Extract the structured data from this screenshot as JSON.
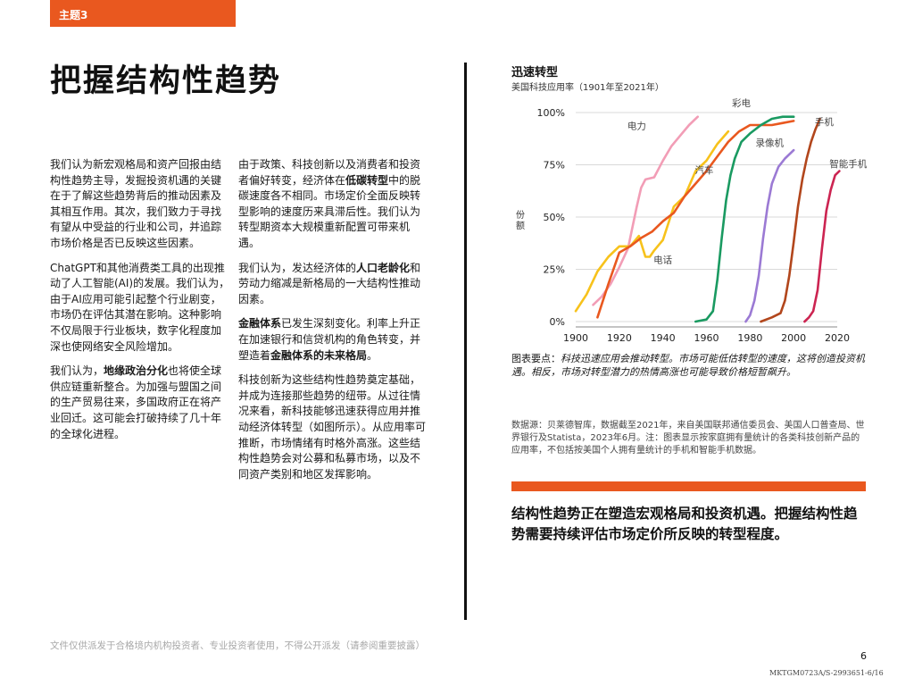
{
  "tag": "主题3",
  "title": "把握结构性趋势",
  "column1": {
    "p1": "我们认为新宏观格局和资产回报由结构性趋势主导，发掘投资机遇的关键在于了解这些趋势背后的推动因素及其相互作用。其次，我们致力于寻找有望从中受益的行业和公司，并追踪市场价格是否已反映这些因素。",
    "p2": "ChatGPT和其他消费类工具的出现推动了人工智能(AI)的发展。我们认为，由于AI应用可能引起整个行业剧变，市场仍在评估其潜在影响。这种影响不仅局限于行业板块，数字化程度加深也使网络安全风险增加。",
    "p3_bold": "地缘政治分化",
    "p3_before": "我们认为，",
    "p3_after": "也将使全球供应链重新整合。为加强与盟国之间的生产贸易往来，多国政府正在将产业回迁。这可能会打破持续了几十年的全球化进程。"
  },
  "column2": {
    "p1_before": "由于政策、科技创新以及消费者和投资者偏好转变，经济体在",
    "p1_bold": "低碳转型",
    "p1_after": "中的脱碳速度各不相同。市场定价全面反映转型影响的速度历来具滞后性。我们认为转型期资本大规模重新配置可带来机遇。",
    "p2_before": "我们认为，发达经济体的",
    "p2_bold": "人口老龄化",
    "p2_after": "和劳动力缩减是新格局的一大结构性推动因素。",
    "p3_bold1": "金融体系",
    "p3_mid": "已发生深刻变化。利率上升正在加速银行和信贷机构的角色转变，并塑造着",
    "p3_bold2": "金融体系的未来格局",
    "p3_end": "。",
    "p4": "科技创新为这些结构性趋势奠定基础，并成为连接那些趋势的纽带。从过往情况来看，新科技能够迅速获得应用并推动经济体转型（如图所示）。从应用率可推断，市场情绪有时格外高涨。这些结构性趋势会对公募和私募市场，以及不同资产类别和地区发挥影响。"
  },
  "chart_data": {
    "type": "line",
    "title": "迅速转型",
    "subtitle": "美国科技应用率（1901年至2021年）",
    "ylabel": "份额",
    "xlim": [
      1900,
      2020
    ],
    "ylim": [
      0,
      100
    ],
    "xticks": [
      1900,
      1920,
      1940,
      1960,
      1980,
      2000,
      2020
    ],
    "yticks": [
      0,
      25,
      50,
      75,
      100
    ],
    "ytick_labels": [
      "0%",
      "25%",
      "50%",
      "75%",
      "100%"
    ],
    "grid": true,
    "series": [
      {
        "name": "电力",
        "color": "#f29db6",
        "x": [
          1908,
          1912,
          1916,
          1920,
          1924,
          1926,
          1928,
          1930,
          1932,
          1936,
          1940,
          1944,
          1948,
          1952,
          1956
        ],
        "y": [
          8,
          12,
          18,
          26,
          35,
          45,
          55,
          64,
          68,
          69,
          77,
          84,
          89,
          94,
          98
        ]
      },
      {
        "name": "汽车",
        "color": "#f7c21b",
        "x": [
          1900,
          1905,
          1910,
          1915,
          1920,
          1925,
          1929,
          1932,
          1934,
          1936,
          1940,
          1945,
          1950,
          1955,
          1960,
          1965,
          1970
        ],
        "y": [
          5,
          13,
          24,
          31,
          36,
          36,
          41,
          31,
          31,
          34,
          39,
          55,
          60,
          72,
          77,
          85,
          91
        ]
      },
      {
        "name": "电话",
        "color": "#e9581f",
        "x": [
          1910,
          1915,
          1920,
          1925,
          1930,
          1935,
          1940,
          1945,
          1950,
          1955,
          1960,
          1965,
          1970,
          1975,
          1980,
          1985,
          1990,
          1995,
          2000
        ],
        "y": [
          2,
          18,
          33,
          36,
          40,
          43,
          48,
          52,
          60,
          66,
          72,
          79,
          86,
          91,
          94,
          94,
          94,
          95,
          96
        ]
      },
      {
        "name": "彩电",
        "color": "#1a9a61",
        "x": [
          1955,
          1960,
          1963,
          1965,
          1967,
          1969,
          1971,
          1973,
          1976,
          1980,
          1985,
          1990,
          1995,
          2000
        ],
        "y": [
          0,
          1,
          5,
          20,
          40,
          58,
          70,
          78,
          86,
          90,
          94,
          97,
          98,
          98
        ]
      },
      {
        "name": "录像机",
        "color": "#9b7ad4",
        "x": [
          1978,
          1980,
          1982,
          1984,
          1986,
          1988,
          1990,
          1993,
          1996,
          2000
        ],
        "y": [
          0,
          3,
          10,
          22,
          40,
          55,
          66,
          74,
          78,
          82
        ]
      },
      {
        "name": "手机",
        "color": "#b2461c",
        "x": [
          1985,
          1990,
          1994,
          1996,
          1998,
          2000,
          2002,
          2004,
          2006,
          2008,
          2010,
          2012
        ],
        "y": [
          0,
          2,
          4,
          10,
          22,
          38,
          55,
          68,
          78,
          86,
          92,
          97
        ]
      },
      {
        "name": "智能手机",
        "color": "#cc2451",
        "x": [
          2005,
          2007,
          2009,
          2011,
          2013,
          2015,
          2017,
          2019,
          2021
        ],
        "y": [
          0,
          2,
          5,
          15,
          35,
          53,
          63,
          70,
          72
        ]
      }
    ],
    "series_label_positions": [
      {
        "series": "电力",
        "x": 1928,
        "y": 92
      },
      {
        "series": "汽车",
        "x": 1959,
        "y": 71
      },
      {
        "series": "电话",
        "x": 1940,
        "y": 28
      },
      {
        "series": "彩电",
        "x": 1976,
        "y": 103
      },
      {
        "series": "录像机",
        "x": 1989,
        "y": 84
      },
      {
        "series": "手机",
        "x": 2014,
        "y": 94
      },
      {
        "series": "智能手机",
        "x": 2025,
        "y": 74
      }
    ]
  },
  "chart_caption_label": "图表要点：",
  "chart_caption": "科技迅速应用会推动转型。市场可能低估转型的速度，这将创造投资机遇。相反，市场对转型潜力的热情高涨也可能导致价格短暂飙升。",
  "chart_source": "数据源：贝莱德智库，数据截至2021年，来自美国联邦通信委员会、美国人口普查局、世界银行及Statista，2023年6月。注：图表显示按家庭拥有量统计的各类科技创新产品的应用率，不包括按美国个人拥有量统计的手机和智能手机数据。",
  "conclusion": "结构性趋势正在塑造宏观格局和投资机遇。把握结构性趋势需要持续评估市场定价所反映的转型程度。",
  "footer": {
    "disclaimer": "文件仅供派发于合格境内机构投资者、专业投资者使用，不得公开派发（请参阅重要披露）",
    "page_number": "6",
    "doc_code": "MKTGM0723A/S-2993651-6/16"
  },
  "colors": {
    "accent": "#e9581f",
    "grid": "#d9d9d9"
  }
}
